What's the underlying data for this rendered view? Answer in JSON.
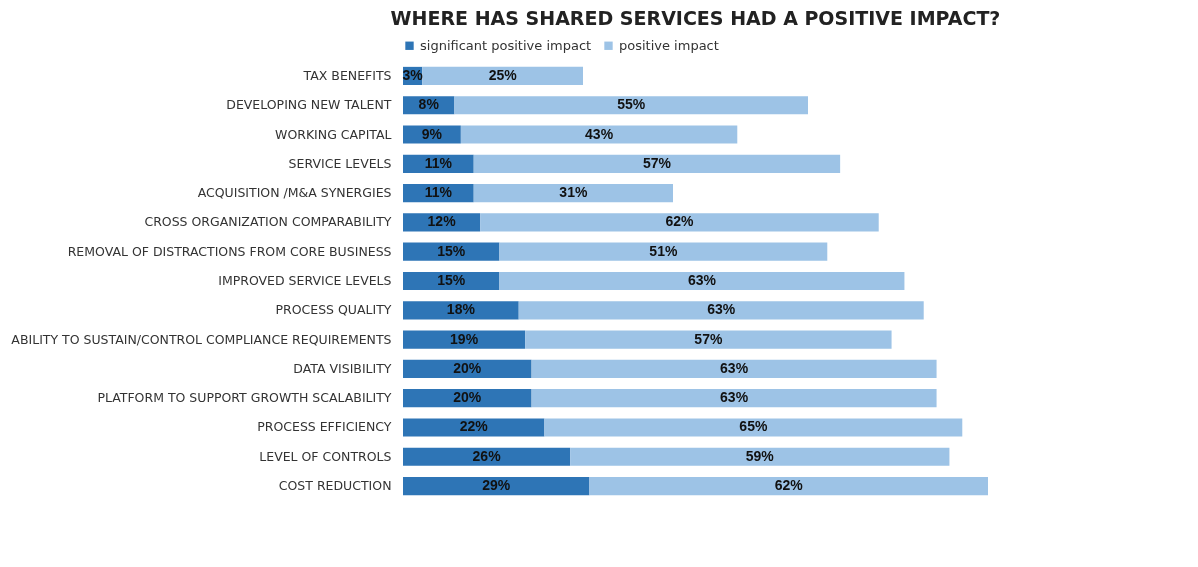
{
  "chart_data": {
    "type": "bar",
    "orientation": "horizontal",
    "stacked": true,
    "title": "WHERE HAS SHARED SERVICES HAD A POSITIVE IMPACT?",
    "legend": "top",
    "categories": [
      "TAX BENEFITS",
      "DEVELOPING NEW TALENT",
      "WORKING CAPITAL",
      "SERVICE LEVELS",
      "ACQUISITION /M&A SYNERGIES",
      "CROSS ORGANIZATION COMPARABILITY",
      "REMOVAL OF DISTRACTIONS FROM CORE BUSINESS",
      "IMPROVED SERVICE LEVELS",
      "PROCESS QUALITY",
      "ABILITY TO SUSTAIN/CONTROL COMPLIANCE REQUIREMENTS",
      "DATA VISIBILITY",
      "PLATFORM TO SUPPORT GROWTH SCALABILITY",
      "PROCESS EFFICIENCY",
      "LEVEL OF CONTROLS",
      "COST REDUCTION"
    ],
    "series": [
      {
        "name": "significant positive impact",
        "color": "#2e75b6",
        "values": [
          3,
          8,
          9,
          11,
          11,
          12,
          15,
          15,
          18,
          19,
          20,
          20,
          22,
          26,
          29
        ],
        "value_labels": [
          "3%",
          "8%",
          "9%",
          "11%",
          "11%",
          "12%",
          "15%",
          "15%",
          "18%",
          "19%",
          "20%",
          "20%",
          "22%",
          "26%",
          "29%"
        ]
      },
      {
        "name": "positive impact",
        "color": "#9dc3e6",
        "values": [
          25,
          55,
          43,
          57,
          31,
          62,
          51,
          63,
          63,
          57,
          63,
          63,
          65,
          59,
          62
        ],
        "value_labels": [
          "25%",
          "55%",
          "43%",
          "57%",
          "31%",
          "62%",
          "51%",
          "63%",
          "63%",
          "57%",
          "63%",
          "63%",
          "65%",
          "59%",
          "62%"
        ]
      }
    ]
  }
}
